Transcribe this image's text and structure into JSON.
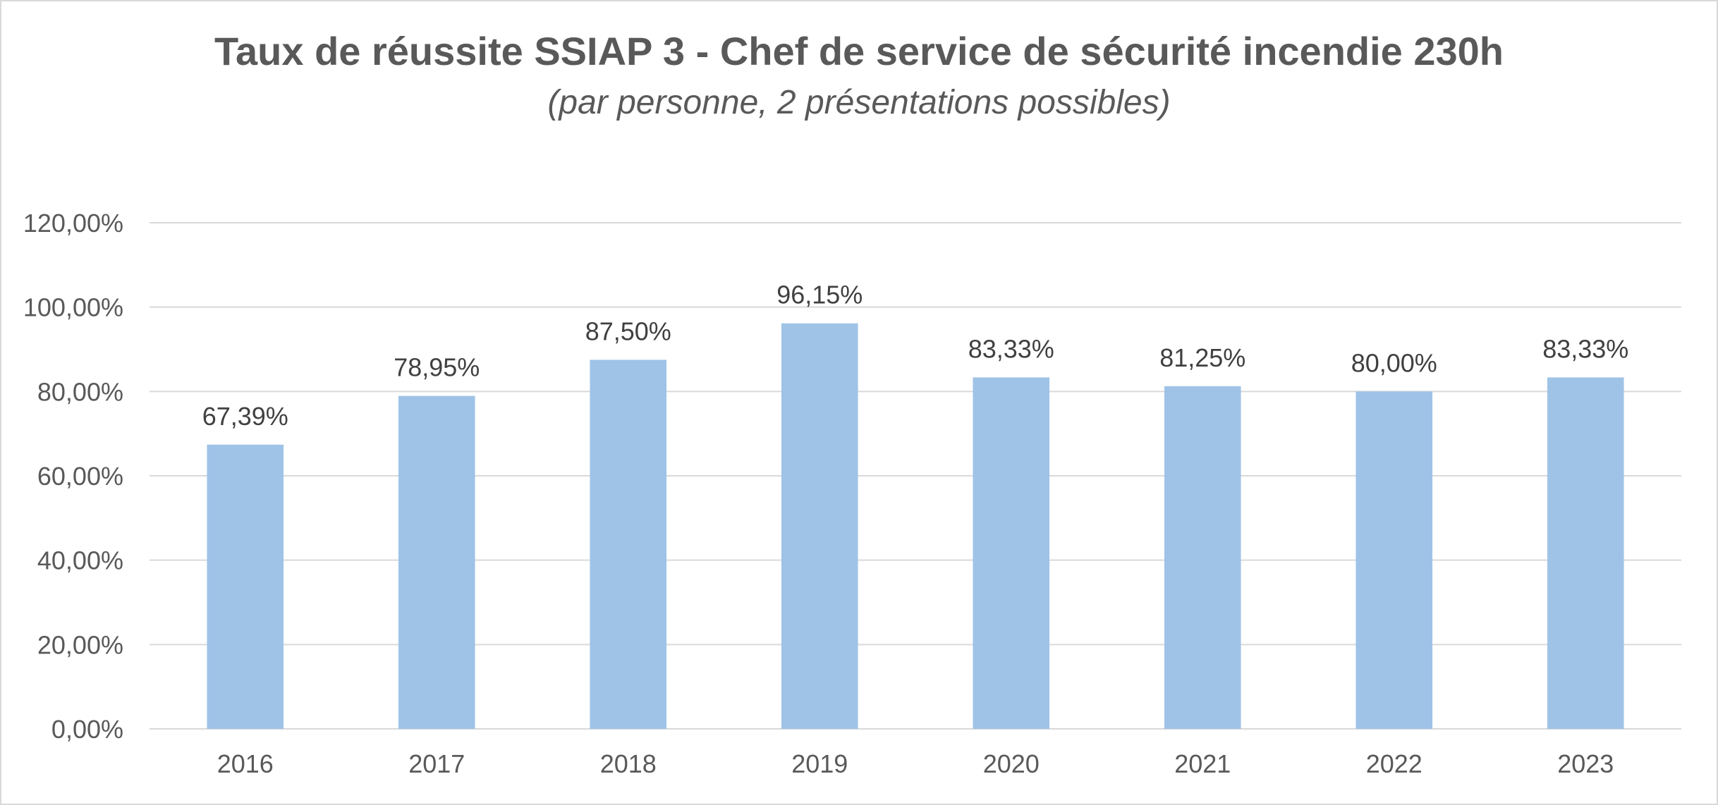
{
  "chart_data": {
    "type": "bar",
    "title": "Taux de réussite SSIAP 3 - Chef de service de sécurité incendie 230h",
    "subtitle": "(par personne, 2 présentations possibles)",
    "xlabel": "",
    "ylabel": "",
    "categories": [
      "2016",
      "2017",
      "2018",
      "2019",
      "2020",
      "2021",
      "2022",
      "2023"
    ],
    "values": [
      67.39,
      78.95,
      87.5,
      96.15,
      83.33,
      81.25,
      80.0,
      83.33
    ],
    "data_labels": [
      "67,39%",
      "78,95%",
      "87,50%",
      "96,15%",
      "83,33%",
      "81,25%",
      "80,00%",
      "83,33%"
    ],
    "ylim": [
      0,
      120
    ],
    "y_ticks": [
      0,
      20,
      40,
      60,
      80,
      100,
      120
    ],
    "y_tick_labels": [
      "0,00%",
      "20,00%",
      "40,00%",
      "60,00%",
      "80,00%",
      "100,00%",
      "120,00%"
    ],
    "grid": true,
    "legend": "none",
    "colors": {
      "bar": "#9fc3e7",
      "grid": "#d9d9d9",
      "text": "#595959"
    }
  }
}
